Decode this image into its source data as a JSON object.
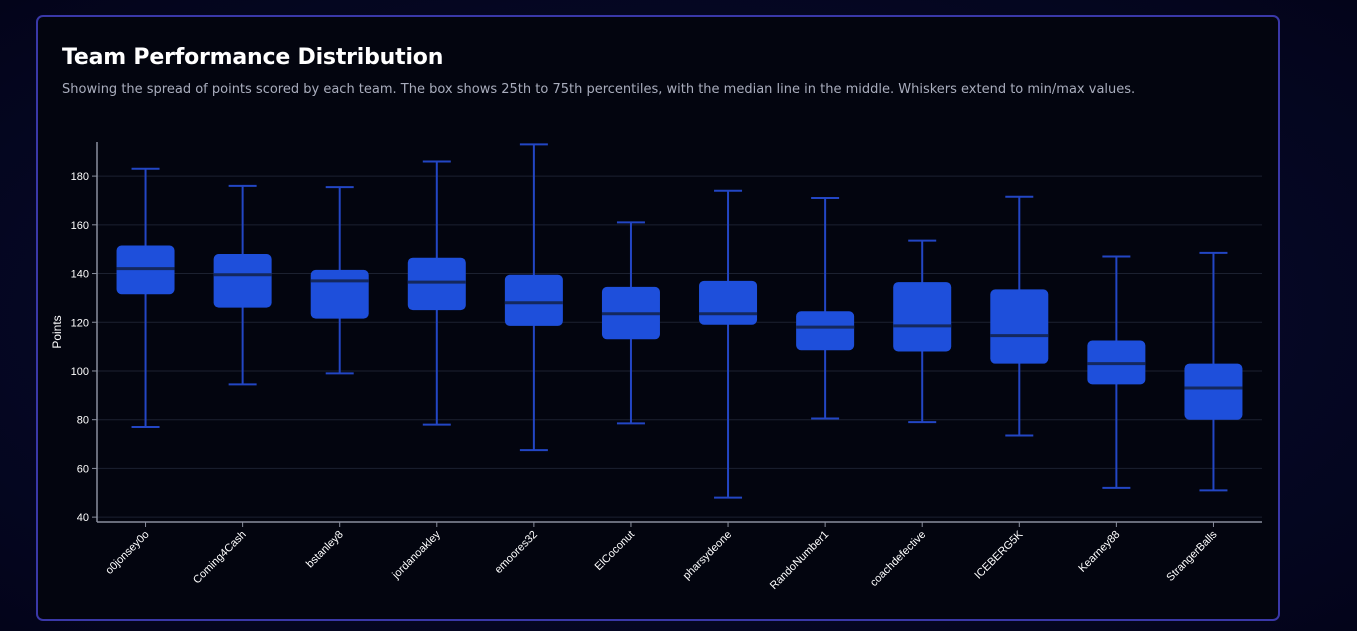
{
  "header": {
    "title": "Team Performance Distribution",
    "subtitle": "Showing the spread of points scored by each team. The box shows 25th to 75th percentiles, with the median line in the middle. Whiskers extend to min/max values."
  },
  "colors": {
    "box_fill": "#1e4fdb",
    "whisker": "#2346c4",
    "median": "#14285e",
    "grid": "#1c2130",
    "axis": "#8a8f9e",
    "card_border": "#3a38a8",
    "card_bg": "#03050f"
  },
  "chart_data": {
    "type": "boxplot",
    "title": "Team Performance Distribution",
    "ylabel": "Points",
    "xlabel": "",
    "ylim": [
      38,
      194
    ],
    "yticks": [
      40,
      60,
      80,
      100,
      120,
      140,
      160,
      180
    ],
    "grid": true,
    "categories": [
      "o0jonsey0o",
      "Coming4Cash",
      "bstanley8",
      "jordanoakley",
      "emoores32",
      "ElCoconut",
      "pharsydeone",
      "RandoNumber1",
      "coachdefective",
      "ICEBERG5K",
      "Kearney88",
      "StrangerBalls"
    ],
    "series": [
      {
        "min": 77,
        "q1": 131.5,
        "median": 142,
        "q3": 151.5,
        "max": 183
      },
      {
        "min": 94.5,
        "q1": 126,
        "median": 139.5,
        "q3": 148,
        "max": 176
      },
      {
        "min": 99,
        "q1": 121.5,
        "median": 137,
        "q3": 141.5,
        "max": 175.5
      },
      {
        "min": 78,
        "q1": 125,
        "median": 136.5,
        "q3": 146.5,
        "max": 186
      },
      {
        "min": 67.5,
        "q1": 118.5,
        "median": 128,
        "q3": 139.5,
        "max": 193
      },
      {
        "min": 78.5,
        "q1": 113,
        "median": 123.5,
        "q3": 134.5,
        "max": 161
      },
      {
        "min": 48,
        "q1": 119,
        "median": 123.5,
        "q3": 137,
        "max": 174
      },
      {
        "min": 80.5,
        "q1": 108.5,
        "median": 118,
        "q3": 124.5,
        "max": 171
      },
      {
        "min": 79,
        "q1": 108,
        "median": 118.5,
        "q3": 136.5,
        "max": 153.5
      },
      {
        "min": 73.5,
        "q1": 103,
        "median": 114.5,
        "q3": 133.5,
        "max": 171.5
      },
      {
        "min": 52,
        "q1": 94.5,
        "median": 103,
        "q3": 112.5,
        "max": 147
      },
      {
        "min": 51,
        "q1": 80,
        "median": 93,
        "q3": 103,
        "max": 148.5
      }
    ]
  }
}
